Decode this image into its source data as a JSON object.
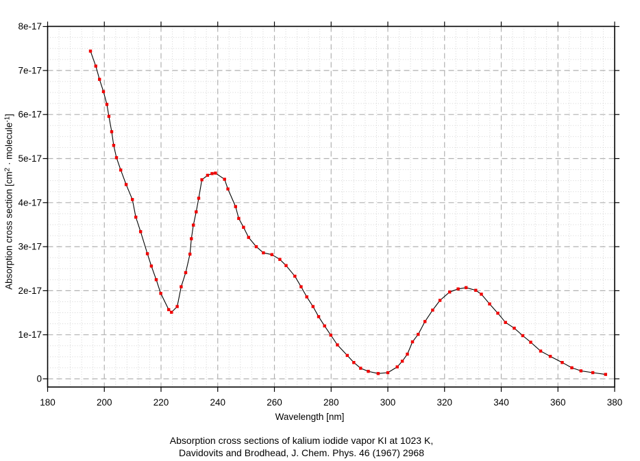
{
  "figure": {
    "background": "#ffffff",
    "caption_line1": "Absorption cross sections of kalium iodide vapor KI at 1023 K,",
    "caption_line2": "Davidovits and Brodhead, J. Chem. Phys. 46 (1967) 2968"
  },
  "axes": {
    "x_label": "Wavelength [nm]",
    "y_label_parts": {
      "pre": "Absorption cross section [cm",
      "sup1": "2",
      "mid": " · molecule",
      "sup2": "-1",
      "post": "]"
    },
    "x_ticks": [
      180,
      200,
      220,
      240,
      260,
      280,
      300,
      320,
      340,
      360,
      380
    ],
    "y_ticks": [
      {
        "value": 0,
        "label": "0"
      },
      {
        "value": 1,
        "label": "1e-17"
      },
      {
        "value": 2,
        "label": "2e-17"
      },
      {
        "value": 3,
        "label": "3e-17"
      },
      {
        "value": 4,
        "label": "4e-17"
      },
      {
        "value": 5,
        "label": "5e-17"
      },
      {
        "value": 6,
        "label": "6e-17"
      },
      {
        "value": 7,
        "label": "7e-17"
      },
      {
        "value": 8,
        "label": "8e-17"
      }
    ]
  },
  "colors": {
    "line": "#000000",
    "marker": "#f10000",
    "grid_major": "#b0b0b0",
    "grid_minor": "#d2d2d2",
    "frame": "#000000",
    "text": "#000000"
  },
  "chart_data": {
    "type": "line",
    "title": "Absorption cross sections of kalium iodide vapor KI at 1023 K, Davidovits and Brodhead, J. Chem. Phys. 46 (1967) 2968",
    "xlabel": "Wavelength [nm]",
    "ylabel": "Absorption cross section [cm2 · molecule-1]",
    "xlim": [
      180,
      380
    ],
    "ylim_1e17": [
      0,
      8
    ],
    "x_major_step_nm": 20,
    "x_minor_step_nm": 4,
    "y_major_step_1e17": 1,
    "y_minor_step_1e17": 0.25,
    "grid": "major dashed + minor dotted",
    "legend": "none",
    "marker": "red square",
    "sigma_unit": "values are cross sections in units of 1e-17 cm2 molecule-1",
    "points": [
      [
        195.1,
        7.44
      ],
      [
        197.0,
        7.1
      ],
      [
        198.3,
        6.8
      ],
      [
        199.7,
        6.52
      ],
      [
        200.9,
        6.23
      ],
      [
        201.6,
        5.96
      ],
      [
        202.6,
        5.61
      ],
      [
        203.3,
        5.3
      ],
      [
        204.3,
        5.02
      ],
      [
        205.8,
        4.74
      ],
      [
        207.7,
        4.41
      ],
      [
        209.9,
        4.07
      ],
      [
        211.1,
        3.67
      ],
      [
        212.8,
        3.34
      ],
      [
        215.2,
        2.84
      ],
      [
        216.6,
        2.56
      ],
      [
        218.3,
        2.25
      ],
      [
        219.9,
        1.94
      ],
      [
        222.7,
        1.57
      ],
      [
        223.7,
        1.51
      ],
      [
        225.7,
        1.64
      ],
      [
        227.1,
        2.09
      ],
      [
        228.7,
        2.41
      ],
      [
        230.2,
        2.83
      ],
      [
        230.7,
        3.18
      ],
      [
        231.4,
        3.49
      ],
      [
        232.4,
        3.79
      ],
      [
        233.3,
        4.1
      ],
      [
        234.4,
        4.52
      ],
      [
        236.4,
        4.62
      ],
      [
        238.0,
        4.66
      ],
      [
        239.2,
        4.67
      ],
      [
        242.4,
        4.53
      ],
      [
        243.6,
        4.31
      ],
      [
        246.3,
        3.91
      ],
      [
        247.4,
        3.64
      ],
      [
        249.1,
        3.44
      ],
      [
        250.9,
        3.21
      ],
      [
        253.6,
        3.0
      ],
      [
        256.1,
        2.86
      ],
      [
        259.1,
        2.82
      ],
      [
        261.9,
        2.71
      ],
      [
        264.1,
        2.57
      ],
      [
        267.2,
        2.33
      ],
      [
        269.4,
        2.09
      ],
      [
        271.4,
        1.86
      ],
      [
        273.6,
        1.64
      ],
      [
        275.6,
        1.41
      ],
      [
        277.7,
        1.2
      ],
      [
        279.9,
        0.99
      ],
      [
        282.2,
        0.77
      ],
      [
        285.7,
        0.53
      ],
      [
        288.0,
        0.37
      ],
      [
        290.4,
        0.24
      ],
      [
        293.1,
        0.17
      ],
      [
        296.6,
        0.12
      ],
      [
        300.0,
        0.14
      ],
      [
        303.3,
        0.27
      ],
      [
        305.1,
        0.4
      ],
      [
        306.9,
        0.56
      ],
      [
        308.7,
        0.84
      ],
      [
        310.7,
        1.01
      ],
      [
        313.1,
        1.3
      ],
      [
        315.8,
        1.56
      ],
      [
        318.4,
        1.78
      ],
      [
        321.8,
        1.97
      ],
      [
        324.8,
        2.04
      ],
      [
        327.6,
        2.07
      ],
      [
        331.0,
        2.01
      ],
      [
        333.0,
        1.92
      ],
      [
        335.9,
        1.7
      ],
      [
        338.8,
        1.49
      ],
      [
        341.5,
        1.28
      ],
      [
        344.6,
        1.15
      ],
      [
        347.6,
        0.98
      ],
      [
        350.4,
        0.83
      ],
      [
        353.9,
        0.63
      ],
      [
        357.3,
        0.51
      ],
      [
        361.5,
        0.37
      ],
      [
        364.9,
        0.25
      ],
      [
        368.1,
        0.18
      ],
      [
        372.3,
        0.14
      ],
      [
        376.8,
        0.1
      ]
    ]
  }
}
